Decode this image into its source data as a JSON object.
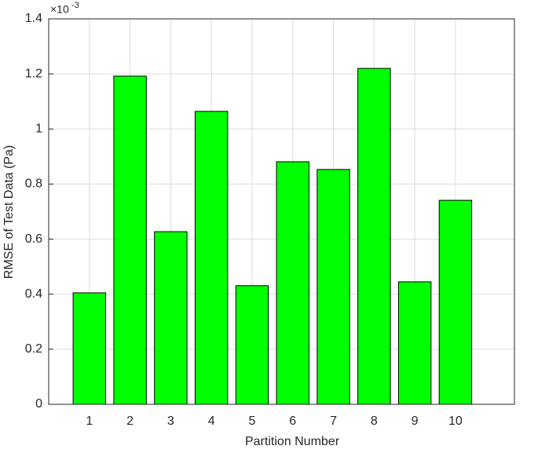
{
  "chart_data": {
    "type": "bar",
    "x_label": "Partition Number",
    "y_label": "RMSE of Test Data (Pa)",
    "y_exponent": {
      "base": "×10",
      "power": "-3"
    },
    "x": [
      1,
      2,
      3,
      4,
      5,
      6,
      7,
      8,
      9,
      10
    ],
    "values": [
      0.405,
      1.192,
      0.627,
      1.064,
      0.431,
      0.881,
      0.853,
      1.22,
      0.445,
      0.741
    ],
    "color": "#00ff00",
    "xlim": [
      0,
      11.45
    ],
    "xticks": [
      1,
      2,
      3,
      4,
      5,
      6,
      7,
      8,
      9,
      10
    ],
    "ylim": [
      0,
      1.4
    ],
    "yticks": [
      0,
      0.2,
      0.4,
      0.6,
      0.8,
      1,
      1.2,
      1.4
    ],
    "grid": true
  }
}
